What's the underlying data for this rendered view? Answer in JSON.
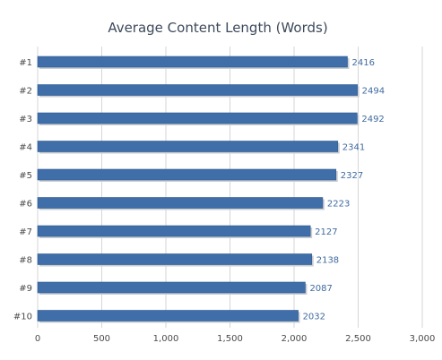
{
  "chart_data": {
    "type": "bar",
    "orientation": "horizontal",
    "title": "Average Content Length (Words)",
    "categories": [
      "#1",
      "#2",
      "#3",
      "#4",
      "#5",
      "#6",
      "#7",
      "#8",
      "#9",
      "#10"
    ],
    "values": [
      2416,
      2494,
      2492,
      2341,
      2327,
      2223,
      2127,
      2138,
      2087,
      2032
    ],
    "value_labels": [
      "2416",
      "2494",
      "2492",
      "2341",
      "2327",
      "2223",
      "2127",
      "2138",
      "2087",
      "2032"
    ],
    "xlim": [
      0,
      3000
    ],
    "x_ticks": [
      0,
      500,
      1000,
      1500,
      2000,
      2500,
      3000
    ],
    "x_tick_labels": [
      "0",
      "500",
      "1,000",
      "1,500",
      "2,000",
      "2,500",
      "3,000"
    ],
    "xlabel": "",
    "ylabel": "",
    "grid": "vertical",
    "legend": "none",
    "colors": {
      "bar": "#3f6ea8",
      "bar_shadow": "#c9cdd2",
      "grid": "#d6d6d6",
      "value_label": "#3f6aa0",
      "text": "#4a4a4a",
      "title": "#3d4a5c"
    }
  }
}
